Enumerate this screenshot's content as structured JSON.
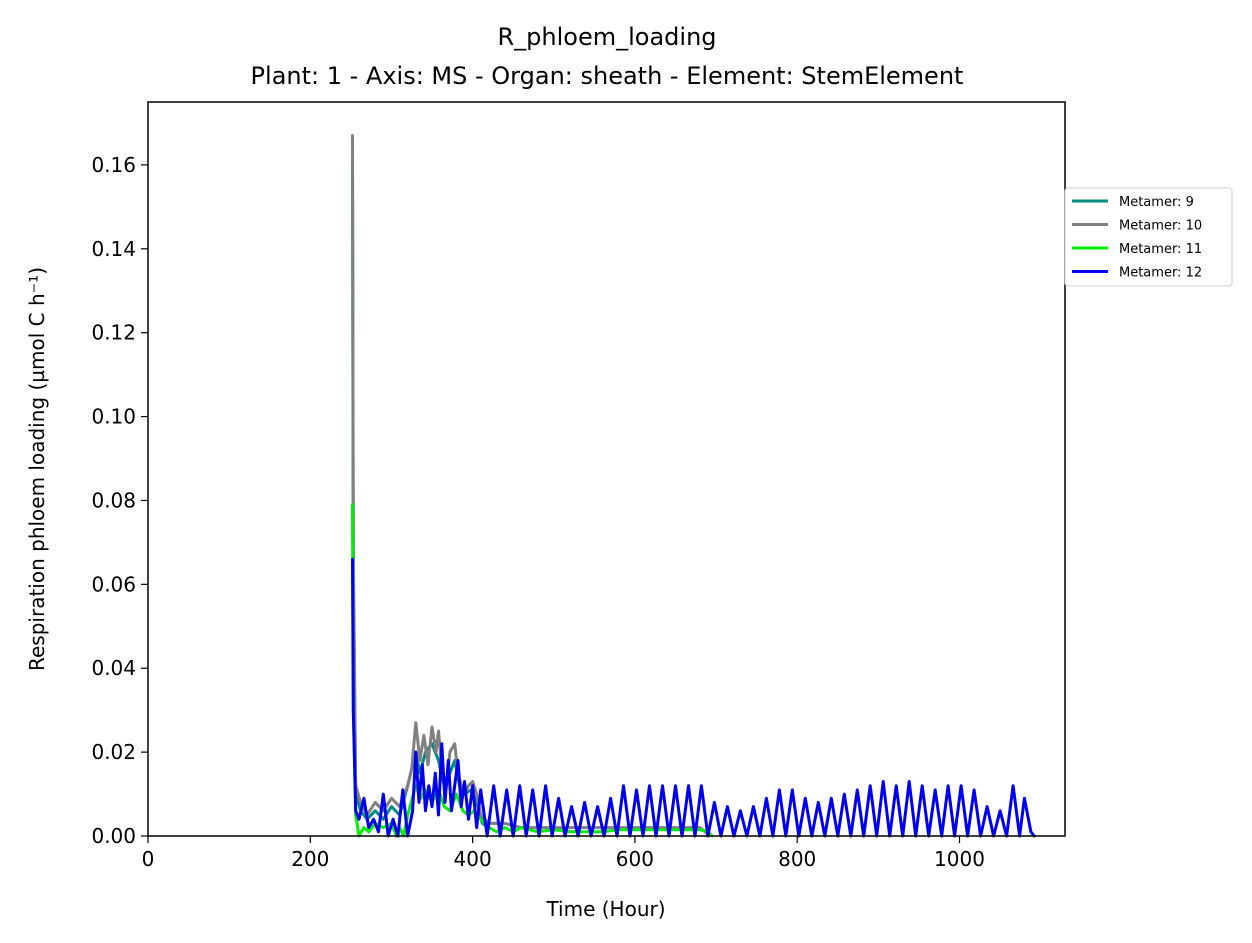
{
  "chart_data": {
    "type": "line",
    "title": "R_phloem_loading",
    "subtitle": "Plant: 1 - Axis: MS - Organ: sheath - Element: StemElement",
    "xlabel": "Time (Hour)",
    "ylabel": "Respiration phloem loading (µmol C h⁻¹)",
    "xlim": [
      0,
      1130
    ],
    "ylim": [
      0,
      0.175
    ],
    "xticks": [
      0,
      200,
      400,
      600,
      800,
      1000
    ],
    "yticks": [
      0.0,
      0.02,
      0.04,
      0.06,
      0.08,
      0.1,
      0.12,
      0.14,
      0.16
    ],
    "xtick_labels": [
      "0",
      "200",
      "400",
      "600",
      "800",
      "1000"
    ],
    "ytick_labels": [
      "0.00",
      "0.02",
      "0.04",
      "0.06",
      "0.08",
      "0.10",
      "0.12",
      "0.14",
      "0.16"
    ],
    "grid": false,
    "legend_position": "right, outside plot area (top)",
    "series": [
      {
        "name": "Metamer: 9",
        "color": "#008b80",
        "x": [
          252,
          253,
          256,
          262,
          270,
          280,
          290,
          300,
          310,
          320,
          330,
          335,
          342,
          350,
          358,
          365,
          372,
          378,
          384,
          390,
          398,
          405,
          412,
          420
        ],
        "y": [
          0.16,
          0.06,
          0.01,
          0.006,
          0.004,
          0.006,
          0.004,
          0.007,
          0.005,
          0.012,
          0.02,
          0.015,
          0.02,
          0.022,
          0.018,
          0.012,
          0.015,
          0.018,
          0.012,
          0.01,
          0.011,
          0.008,
          0.003,
          0.002
        ]
      },
      {
        "name": "Metamer: 10",
        "color": "#808080",
        "x": [
          252,
          253,
          256,
          262,
          270,
          280,
          290,
          300,
          310,
          320,
          325,
          330,
          335,
          340,
          345,
          350,
          355,
          358,
          362,
          368,
          372,
          378,
          382,
          386,
          390,
          395,
          400,
          405,
          410,
          420,
          440,
          460,
          480,
          500,
          520,
          540,
          560,
          580,
          600,
          620,
          640,
          660,
          680,
          690
        ],
        "y": [
          0.167,
          0.07,
          0.012,
          0.008,
          0.005,
          0.008,
          0.006,
          0.009,
          0.007,
          0.012,
          0.016,
          0.027,
          0.018,
          0.024,
          0.017,
          0.026,
          0.02,
          0.025,
          0.016,
          0.012,
          0.02,
          0.022,
          0.015,
          0.012,
          0.01,
          0.012,
          0.013,
          0.01,
          0.005,
          0.003,
          0.003,
          0.002,
          0.002,
          0.002,
          0.002,
          0.002,
          0.002,
          0.002,
          0.002,
          0.002,
          0.002,
          0.002,
          0.002,
          0.0005
        ]
      },
      {
        "name": "Metamer: 11",
        "color": "#00ee00",
        "x": [
          252,
          253,
          256,
          260,
          266,
          272,
          280,
          290,
          300,
          306,
          310,
          315,
          320,
          330,
          336,
          342,
          350,
          358,
          365,
          372,
          380,
          388,
          395,
          402,
          410,
          420,
          430,
          440,
          450,
          460,
          480,
          500,
          520,
          540,
          560,
          580,
          600,
          620,
          640,
          660,
          680,
          690,
          695
        ],
        "y": [
          0.079,
          0.03,
          0.005,
          0.0,
          0.002,
          0.001,
          0.003,
          0.002,
          0.003,
          0.0,
          0.002,
          0.0,
          0.005,
          0.012,
          0.009,
          0.011,
          0.008,
          0.011,
          0.007,
          0.006,
          0.01,
          0.006,
          0.005,
          0.006,
          0.004,
          0.002,
          0.001,
          0.002,
          0.001,
          0.002,
          0.001,
          0.0015,
          0.001,
          0.001,
          0.001,
          0.0015,
          0.0015,
          0.0015,
          0.0015,
          0.0015,
          0.0015,
          0.001,
          0.0
        ]
      },
      {
        "name": "Metamer: 12",
        "color": "#0000ee",
        "x": [
          252,
          253,
          256,
          260,
          266,
          272,
          278,
          284,
          290,
          296,
          302,
          308,
          314,
          320,
          326,
          330,
          334,
          338,
          342,
          346,
          350,
          354,
          358,
          362,
          366,
          370,
          374,
          378,
          382,
          386,
          390,
          395,
          400,
          405,
          410,
          418,
          426,
          434,
          442,
          450,
          458,
          466,
          474,
          482,
          490,
          498,
          506,
          514,
          522,
          530,
          538,
          546,
          554,
          562,
          570,
          578,
          586,
          594,
          602,
          610,
          618,
          626,
          634,
          642,
          650,
          658,
          666,
          674,
          682,
          690,
          698,
          706,
          714,
          722,
          730,
          738,
          746,
          754,
          762,
          770,
          778,
          786,
          794,
          802,
          810,
          818,
          826,
          834,
          842,
          850,
          858,
          866,
          874,
          882,
          890,
          898,
          906,
          914,
          922,
          930,
          938,
          946,
          954,
          962,
          970,
          978,
          986,
          994,
          1002,
          1010,
          1018,
          1026,
          1034,
          1042,
          1050,
          1058,
          1066,
          1074,
          1080,
          1088,
          1092
        ],
        "y": [
          0.066,
          0.03,
          0.006,
          0.004,
          0.009,
          0.002,
          0.004,
          0.001,
          0.01,
          0.0,
          0.004,
          0.0,
          0.011,
          0.0,
          0.006,
          0.02,
          0.008,
          0.017,
          0.006,
          0.012,
          0.007,
          0.015,
          0.005,
          0.022,
          0.008,
          0.018,
          0.006,
          0.012,
          0.018,
          0.007,
          0.013,
          0.004,
          0.012,
          0.002,
          0.011,
          0.0,
          0.012,
          0.0,
          0.011,
          0.0,
          0.012,
          0.0,
          0.011,
          0.0,
          0.012,
          0.0,
          0.009,
          0.0,
          0.007,
          0.0,
          0.008,
          0.0,
          0.007,
          0.0,
          0.009,
          0.0,
          0.012,
          0.0,
          0.011,
          0.0,
          0.012,
          0.0,
          0.012,
          0.0,
          0.012,
          0.0,
          0.012,
          0.0,
          0.012,
          0.0,
          0.008,
          0.0,
          0.007,
          0.0,
          0.006,
          0.0,
          0.007,
          0.0,
          0.009,
          0.0,
          0.011,
          0.0,
          0.011,
          0.0,
          0.009,
          0.0,
          0.008,
          0.0,
          0.009,
          0.0,
          0.01,
          0.0,
          0.011,
          0.0,
          0.012,
          0.0,
          0.013,
          0.0,
          0.012,
          0.0,
          0.013,
          0.0,
          0.012,
          0.0,
          0.011,
          0.0,
          0.012,
          0.0,
          0.012,
          0.0,
          0.011,
          0.0,
          0.007,
          0.0,
          0.006,
          0.0,
          0.012,
          0.0,
          0.009,
          0.001,
          0.0
        ]
      }
    ]
  }
}
